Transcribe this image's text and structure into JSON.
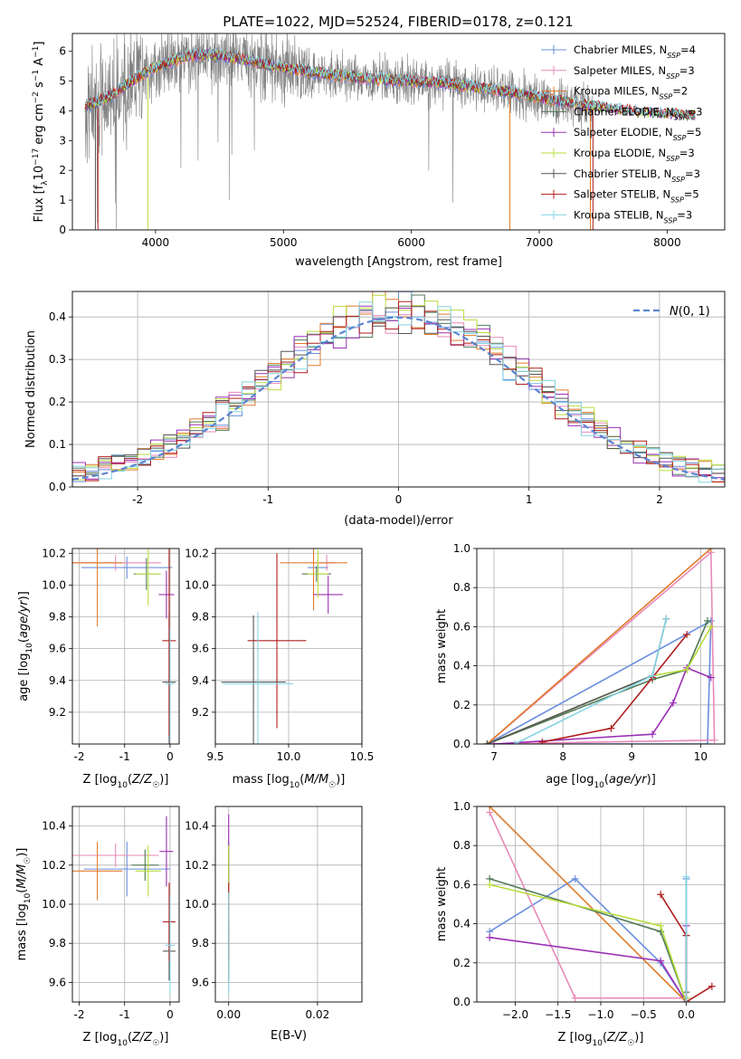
{
  "figure": {
    "title": "PLATE=1022, MJD=52524, FIBERID=0178, z=0.121"
  },
  "colors": {
    "chabrier_miles": "#6a8fdc",
    "salpeter_miles": "#e88ab8",
    "kroupa_miles": "#e07b2a",
    "chabrier_elodie": "#4f7a55",
    "salpeter_elodie": "#9b30b5",
    "kroupa_elodie": "#b8dd3c",
    "chabrier_stelib": "#555555",
    "salpeter_stelib": "#b01e1e",
    "kroupa_stelib": "#86d4e4",
    "data": "#808080",
    "normal": "#5b85d0"
  },
  "chart_data": [
    {
      "id": "spectrum",
      "type": "line",
      "xlabel": "wavelength [Angstrom, rest frame]",
      "ylabel": "Flux [f_λ 10^-17 erg cm^-2 s^-1 A^-1]",
      "xlim": [
        3350,
        8450
      ],
      "ylim": [
        0,
        6.6
      ],
      "xticks": [
        4000,
        5000,
        6000,
        7000,
        8000
      ],
      "yticks": [
        0,
        1,
        2,
        3,
        4,
        5,
        6
      ],
      "legend_position": "upper right",
      "legend": [
        {
          "main": "Chabrier MILES, N",
          "sub": "SSP",
          "tail": "=4",
          "color_key": "chabrier_miles"
        },
        {
          "main": "Salpeter MILES, N",
          "sub": "SSP",
          "tail": "=3",
          "color_key": "salpeter_miles"
        },
        {
          "main": "Kroupa MILES, N",
          "sub": "SSP",
          "tail": "=2",
          "color_key": "kroupa_miles"
        },
        {
          "main": "Chabrier ELODIE, N",
          "sub": "SSP",
          "tail": "=3",
          "color_key": "chabrier_elodie"
        },
        {
          "main": "Salpeter ELODIE, N",
          "sub": "SSP",
          "tail": "=5",
          "color_key": "salpeter_elodie"
        },
        {
          "main": "Kroupa ELODIE, N",
          "sub": "SSP",
          "tail": "=3",
          "color_key": "kroupa_elodie"
        },
        {
          "main": "Chabrier STELIB, N",
          "sub": "SSP",
          "tail": "=3",
          "color_key": "chabrier_stelib"
        },
        {
          "main": "Salpeter STELIB, N",
          "sub": "SSP",
          "tail": "=5",
          "color_key": "salpeter_stelib"
        },
        {
          "main": "Kroupa STELIB, N",
          "sub": "SSP",
          "tail": "=3",
          "color_key": "kroupa_stelib"
        }
      ],
      "model_trend": {
        "x": [
          3450,
          3550,
          3650,
          3750,
          3850,
          3950,
          4050,
          4150,
          4250,
          4400,
          4600,
          4800,
          5000,
          5200,
          5400,
          5600,
          5800,
          6000,
          6200,
          6400,
          6600,
          6800,
          7000,
          7200,
          7400,
          7600,
          7800,
          8000,
          8200
        ],
        "y": [
          4.15,
          4.3,
          4.5,
          4.8,
          5.1,
          5.35,
          5.55,
          5.7,
          5.85,
          5.9,
          5.8,
          5.6,
          5.45,
          5.3,
          5.2,
          5.1,
          5.05,
          5.0,
          4.95,
          4.85,
          4.75,
          4.6,
          4.45,
          4.3,
          4.15,
          4.05,
          3.95,
          3.9,
          3.85
        ]
      }
    },
    {
      "id": "residuals",
      "type": "histogram",
      "xlabel": "(data-model)/error",
      "ylabel": "Normed distribution",
      "xlim": [
        -2.5,
        2.5
      ],
      "ylim": [
        0,
        0.46
      ],
      "xticks": [
        -2,
        -1,
        0,
        1,
        2
      ],
      "yticks": [
        0,
        0.1,
        0.2,
        0.3,
        0.4
      ],
      "legend_label": "N(0,1)",
      "bin_width": 0.1,
      "bin_start": -2.5
    },
    {
      "id": "z_age",
      "type": "errorbar",
      "xlabel": "Z [log10(Z/Z☉)]",
      "ylabel": "age [log10(age/yr)]",
      "xlim": [
        -2.15,
        0.2
      ],
      "ylim": [
        9.0,
        10.23
      ],
      "xticks": [
        -2,
        -1,
        0
      ],
      "yticks": [
        9.2,
        9.4,
        9.6,
        9.8,
        10.0,
        10.2
      ],
      "points": [
        {
          "k": "chabrier_miles",
          "x": -0.95,
          "xerr": 1.0,
          "y": 10.11,
          "yerr": 0.07
        },
        {
          "k": "salpeter_miles",
          "x": -1.2,
          "xerr": 1.0,
          "y": 10.14,
          "yerr": 0.05
        },
        {
          "k": "kroupa_miles",
          "x": -1.6,
          "xerr": 0.55,
          "y": 10.14,
          "yerr": 0.4
        },
        {
          "k": "chabrier_elodie",
          "x": -0.52,
          "xerr": 0.28,
          "y": 10.07,
          "yerr": 0.1
        },
        {
          "k": "salpeter_elodie",
          "x": -0.08,
          "xerr": 0.17,
          "y": 9.94,
          "yerr": 0.15
        },
        {
          "k": "kroupa_elodie",
          "x": -0.48,
          "xerr": 0.28,
          "y": 10.07,
          "yerr": 0.2
        },
        {
          "k": "chabrier_stelib",
          "x": -0.02,
          "xerr": 0.15,
          "y": 9.39,
          "yerr": 0.45
        },
        {
          "k": "salpeter_stelib",
          "x": -0.02,
          "xerr": 0.15,
          "y": 9.65,
          "yerr": 0.6
        },
        {
          "k": "kroupa_stelib",
          "x": 0.0,
          "xerr": 0.1,
          "y": 9.38,
          "yerr": 0.35
        }
      ]
    },
    {
      "id": "mass_age",
      "type": "errorbar",
      "xlabel": "mass [log10(M/M☉)]",
      "ylabel": "",
      "xlim": [
        9.5,
        10.5
      ],
      "ylim": [
        9.0,
        10.23
      ],
      "xticks": [
        9.5,
        10.0,
        10.5
      ],
      "yticks": [
        9.2,
        9.4,
        9.6,
        9.8,
        10.0,
        10.2
      ],
      "points": [
        {
          "k": "chabrier_miles",
          "x": 10.2,
          "xerr": 0.07,
          "y": 10.11,
          "yerr": 0.05
        },
        {
          "k": "salpeter_miles",
          "x": 10.26,
          "xerr": 0.06,
          "y": 10.14,
          "yerr": 0.05
        },
        {
          "k": "kroupa_miles",
          "x": 10.17,
          "xerr": 0.23,
          "y": 10.14,
          "yerr": 0.3
        },
        {
          "k": "chabrier_elodie",
          "x": 10.19,
          "xerr": 0.1,
          "y": 10.07,
          "yerr": 0.05
        },
        {
          "k": "salpeter_elodie",
          "x": 10.27,
          "xerr": 0.1,
          "y": 9.94,
          "yerr": 0.12
        },
        {
          "k": "kroupa_elodie",
          "x": 10.2,
          "xerr": 0.07,
          "y": 10.07,
          "yerr": 0.15
        },
        {
          "k": "chabrier_stelib",
          "x": 9.76,
          "xerr": 0.22,
          "y": 9.39,
          "yerr": 0.42
        },
        {
          "k": "salpeter_stelib",
          "x": 9.92,
          "xerr": 0.2,
          "y": 9.65,
          "yerr": 0.55
        },
        {
          "k": "kroupa_stelib",
          "x": 9.79,
          "xerr": 0.24,
          "y": 9.38,
          "yerr": 0.45
        }
      ]
    },
    {
      "id": "age_weight",
      "type": "line",
      "xlabel": "age [log10(age/yr)]",
      "ylabel": "mass weight",
      "xlim": [
        6.75,
        10.35
      ],
      "ylim": [
        0,
        1.0
      ],
      "xticks": [
        7,
        8,
        9,
        10
      ],
      "yticks": [
        0.0,
        0.2,
        0.4,
        0.6,
        0.8,
        1.0
      ],
      "series": [
        {
          "k": "chabrier_miles",
          "x": [
            6.9,
            10.1,
            10.15,
            6.9
          ],
          "y": [
            0.0,
            0.0,
            0.63,
            0.0
          ]
        },
        {
          "k": "salpeter_miles",
          "x": [
            6.9,
            10.15,
            10.2,
            6.9
          ],
          "y": [
            0.0,
            0.98,
            0.02,
            0.0
          ]
        },
        {
          "k": "kroupa_miles",
          "x": [
            6.9,
            10.15
          ],
          "y": [
            0.0,
            1.0
          ]
        },
        {
          "k": "chabrier_elodie",
          "x": [
            6.9,
            9.3,
            9.8,
            10.1
          ],
          "y": [
            0.0,
            0.33,
            0.38,
            0.63
          ]
        },
        {
          "k": "salpeter_elodie",
          "x": [
            7.0,
            9.3,
            9.6,
            9.8,
            10.15
          ],
          "y": [
            0.0,
            0.05,
            0.21,
            0.39,
            0.34
          ]
        },
        {
          "k": "kroupa_elodie",
          "x": [
            6.9,
            9.3,
            9.8,
            10.15
          ],
          "y": [
            0.0,
            0.35,
            0.38,
            0.6
          ]
        },
        {
          "k": "chabrier_stelib",
          "x": [
            6.9,
            9.3,
            9.5
          ],
          "y": [
            0.0,
            0.35,
            0.64
          ]
        },
        {
          "k": "salpeter_stelib",
          "x": [
            7.7,
            8.7,
            9.3,
            9.8
          ],
          "y": [
            0.01,
            0.08,
            0.34,
            0.56
          ]
        },
        {
          "k": "kroupa_stelib",
          "x": [
            7.3,
            9.3,
            9.5
          ],
          "y": [
            0.0,
            0.35,
            0.64
          ]
        }
      ]
    },
    {
      "id": "z_mass",
      "type": "errorbar",
      "xlabel": "Z [log10(Z/Z☉)]",
      "ylabel": "mass [log10(M/M☉)]",
      "xlim": [
        -2.15,
        0.2
      ],
      "ylim": [
        9.5,
        10.5
      ],
      "xticks": [
        -2,
        -1,
        0
      ],
      "yticks": [
        9.6,
        9.8,
        10.0,
        10.2,
        10.4
      ],
      "points": [
        {
          "k": "chabrier_miles",
          "x": -0.95,
          "xerr": 0.95,
          "y": 10.18,
          "yerr": 0.14
        },
        {
          "k": "salpeter_miles",
          "x": -1.2,
          "xerr": 0.95,
          "y": 10.25,
          "yerr": 0.06
        },
        {
          "k": "kroupa_miles",
          "x": -1.6,
          "xerr": 0.55,
          "y": 10.17,
          "yerr": 0.15
        },
        {
          "k": "chabrier_elodie",
          "x": -0.55,
          "xerr": 0.3,
          "y": 10.2,
          "yerr": 0.08
        },
        {
          "k": "salpeter_elodie",
          "x": -0.08,
          "xerr": 0.15,
          "y": 10.27,
          "yerr": 0.18
        },
        {
          "k": "kroupa_elodie",
          "x": -0.48,
          "xerr": 0.28,
          "y": 10.17,
          "yerr": 0.13
        },
        {
          "k": "chabrier_stelib",
          "x": -0.02,
          "xerr": 0.14,
          "y": 9.76,
          "yerr": 0.15
        },
        {
          "k": "salpeter_stelib",
          "x": -0.02,
          "xerr": 0.14,
          "y": 9.91,
          "yerr": 0.2
        },
        {
          "k": "kroupa_stelib",
          "x": 0.0,
          "xerr": 0.1,
          "y": 9.79,
          "yerr": 0.25
        }
      ]
    },
    {
      "id": "ebv_mass",
      "type": "errorbar",
      "xlabel": "E(B-V)",
      "ylabel": "",
      "xlim": [
        -0.003,
        0.03
      ],
      "ylim": [
        9.5,
        10.5
      ],
      "xticks": [
        0.0,
        0.02
      ],
      "yticks": [
        9.6,
        9.8,
        10.0,
        10.2,
        10.4
      ],
      "points": [
        {
          "k": "chabrier_miles",
          "x": 0.0,
          "xerr": 0,
          "y": 10.18,
          "yerr": 0.14
        },
        {
          "k": "salpeter_miles",
          "x": 0.0,
          "xerr": 0,
          "y": 10.25,
          "yerr": 0.06
        },
        {
          "k": "kroupa_miles",
          "x": 0.03,
          "xerr": 0,
          "y": 10.13,
          "yerr": 0.19
        },
        {
          "k": "chabrier_elodie",
          "x": 0.0,
          "xerr": 0,
          "y": 10.2,
          "yerr": 0.08
        },
        {
          "k": "salpeter_elodie",
          "x": 0.0,
          "xerr": 0,
          "y": 10.27,
          "yerr": 0.19
        },
        {
          "k": "kroupa_elodie",
          "x": 0.0,
          "xerr": 0,
          "y": 10.17,
          "yerr": 0.13
        },
        {
          "k": "chabrier_stelib",
          "x": 0.0,
          "xerr": 0,
          "y": 9.76,
          "yerr": 0.15
        },
        {
          "k": "salpeter_stelib",
          "x": 0.0,
          "xerr": 0,
          "y": 9.91,
          "yerr": 0.2
        },
        {
          "k": "kroupa_stelib",
          "x": 0.0,
          "xerr": 0,
          "y": 9.8,
          "yerr": 0.26
        }
      ]
    },
    {
      "id": "z_weight",
      "type": "line",
      "xlabel": "Z [log10(Z/Z☉)]",
      "ylabel": "mass weight",
      "xlim": [
        -2.45,
        0.45
      ],
      "ylim": [
        0,
        1.0
      ],
      "xticks": [
        -2.0,
        -1.5,
        -1.0,
        -0.5,
        0.0
      ],
      "yticks": [
        0.0,
        0.2,
        0.4,
        0.6,
        0.8,
        1.0
      ],
      "series": [
        {
          "k": "chabrier_miles",
          "x": [
            -2.3,
            -1.3,
            -0.3,
            0.0,
            0.0
          ],
          "y": [
            0.36,
            0.63,
            0.2,
            0.0,
            0.63
          ]
        },
        {
          "k": "salpeter_miles",
          "x": [
            -2.3,
            -1.3,
            0.0,
            0.0
          ],
          "y": [
            0.97,
            0.02,
            0.02,
            0.0
          ]
        },
        {
          "k": "kroupa_miles",
          "x": [
            -2.3,
            0.0
          ],
          "y": [
            1.0,
            0.0
          ]
        },
        {
          "k": "chabrier_elodie",
          "x": [
            -2.3,
            -0.3,
            0.0,
            0.0
          ],
          "y": [
            0.63,
            0.36,
            0.0,
            0.05
          ]
        },
        {
          "k": "salpeter_elodie",
          "x": [
            -2.3,
            -0.3,
            0.0,
            0.0
          ],
          "y": [
            0.33,
            0.21,
            0.0,
            0.39
          ]
        },
        {
          "k": "kroupa_elodie",
          "x": [
            -2.3,
            -0.3,
            0.0,
            0.0
          ],
          "y": [
            0.6,
            0.39,
            0.0,
            0.02
          ]
        },
        {
          "k": "chabrier_stelib",
          "x": [
            0.0,
            0.0
          ],
          "y": [
            0.0,
            0.34
          ]
        },
        {
          "k": "salpeter_stelib",
          "x": [
            -0.3,
            0.0,
            0.0,
            0.3
          ],
          "y": [
            0.55,
            0.34,
            0.0,
            0.08
          ]
        },
        {
          "k": "kroupa_stelib",
          "x": [
            0.0,
            0.0
          ],
          "y": [
            0.0,
            0.64
          ]
        }
      ]
    }
  ]
}
